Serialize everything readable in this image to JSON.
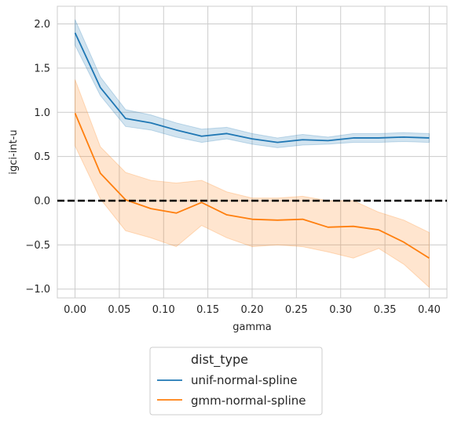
{
  "chart_data": {
    "type": "line",
    "xlabel": "gamma",
    "ylabel": "igci-int-u",
    "xlim": [
      -0.02,
      0.42
    ],
    "ylim": [
      -1.1,
      2.2
    ],
    "xticks": [
      "0.00",
      "0.05",
      "0.10",
      "0.15",
      "0.20",
      "0.25",
      "0.30",
      "0.35",
      "0.40"
    ],
    "yticks": [
      "−1.0",
      "−0.5",
      "0.0",
      "0.5",
      "1.0",
      "1.5",
      "2.0"
    ],
    "grid": true,
    "legend": {
      "title": "dist_type",
      "placement": "below"
    },
    "reference_line": {
      "y": 0.0,
      "style": "dashed",
      "color": "#000000"
    },
    "x": [
      0.0,
      0.0286,
      0.0571,
      0.0857,
      0.1143,
      0.1429,
      0.1714,
      0.2,
      0.2286,
      0.2571,
      0.2857,
      0.3143,
      0.3429,
      0.3714,
      0.4
    ],
    "series": [
      {
        "name": "unif-normal-spline",
        "color": "#1f77b4",
        "values": [
          1.9,
          1.28,
          0.93,
          0.88,
          0.8,
          0.73,
          0.76,
          0.7,
          0.66,
          0.69,
          0.68,
          0.71,
          0.71,
          0.72,
          0.71
        ],
        "lower": [
          1.76,
          1.19,
          0.84,
          0.8,
          0.72,
          0.66,
          0.7,
          0.64,
          0.6,
          0.63,
          0.64,
          0.66,
          0.66,
          0.67,
          0.66
        ],
        "upper": [
          2.05,
          1.4,
          1.03,
          0.97,
          0.88,
          0.81,
          0.83,
          0.76,
          0.71,
          0.75,
          0.72,
          0.76,
          0.76,
          0.77,
          0.76
        ]
      },
      {
        "name": "gmm-normal-spline",
        "color": "#ff7f0e",
        "values": [
          0.99,
          0.31,
          0.01,
          -0.09,
          -0.14,
          -0.02,
          -0.16,
          -0.21,
          -0.22,
          -0.21,
          -0.3,
          -0.29,
          -0.33,
          -0.47,
          -0.65
        ],
        "lower": [
          0.62,
          0.02,
          -0.34,
          -0.42,
          -0.52,
          -0.28,
          -0.42,
          -0.52,
          -0.5,
          -0.52,
          -0.58,
          -0.65,
          -0.54,
          -0.72,
          -0.98
        ],
        "upper": [
          1.37,
          0.61,
          0.32,
          0.23,
          0.2,
          0.23,
          0.1,
          0.03,
          0.03,
          0.05,
          0.0,
          0.0,
          -0.13,
          -0.22,
          -0.36
        ]
      }
    ]
  }
}
